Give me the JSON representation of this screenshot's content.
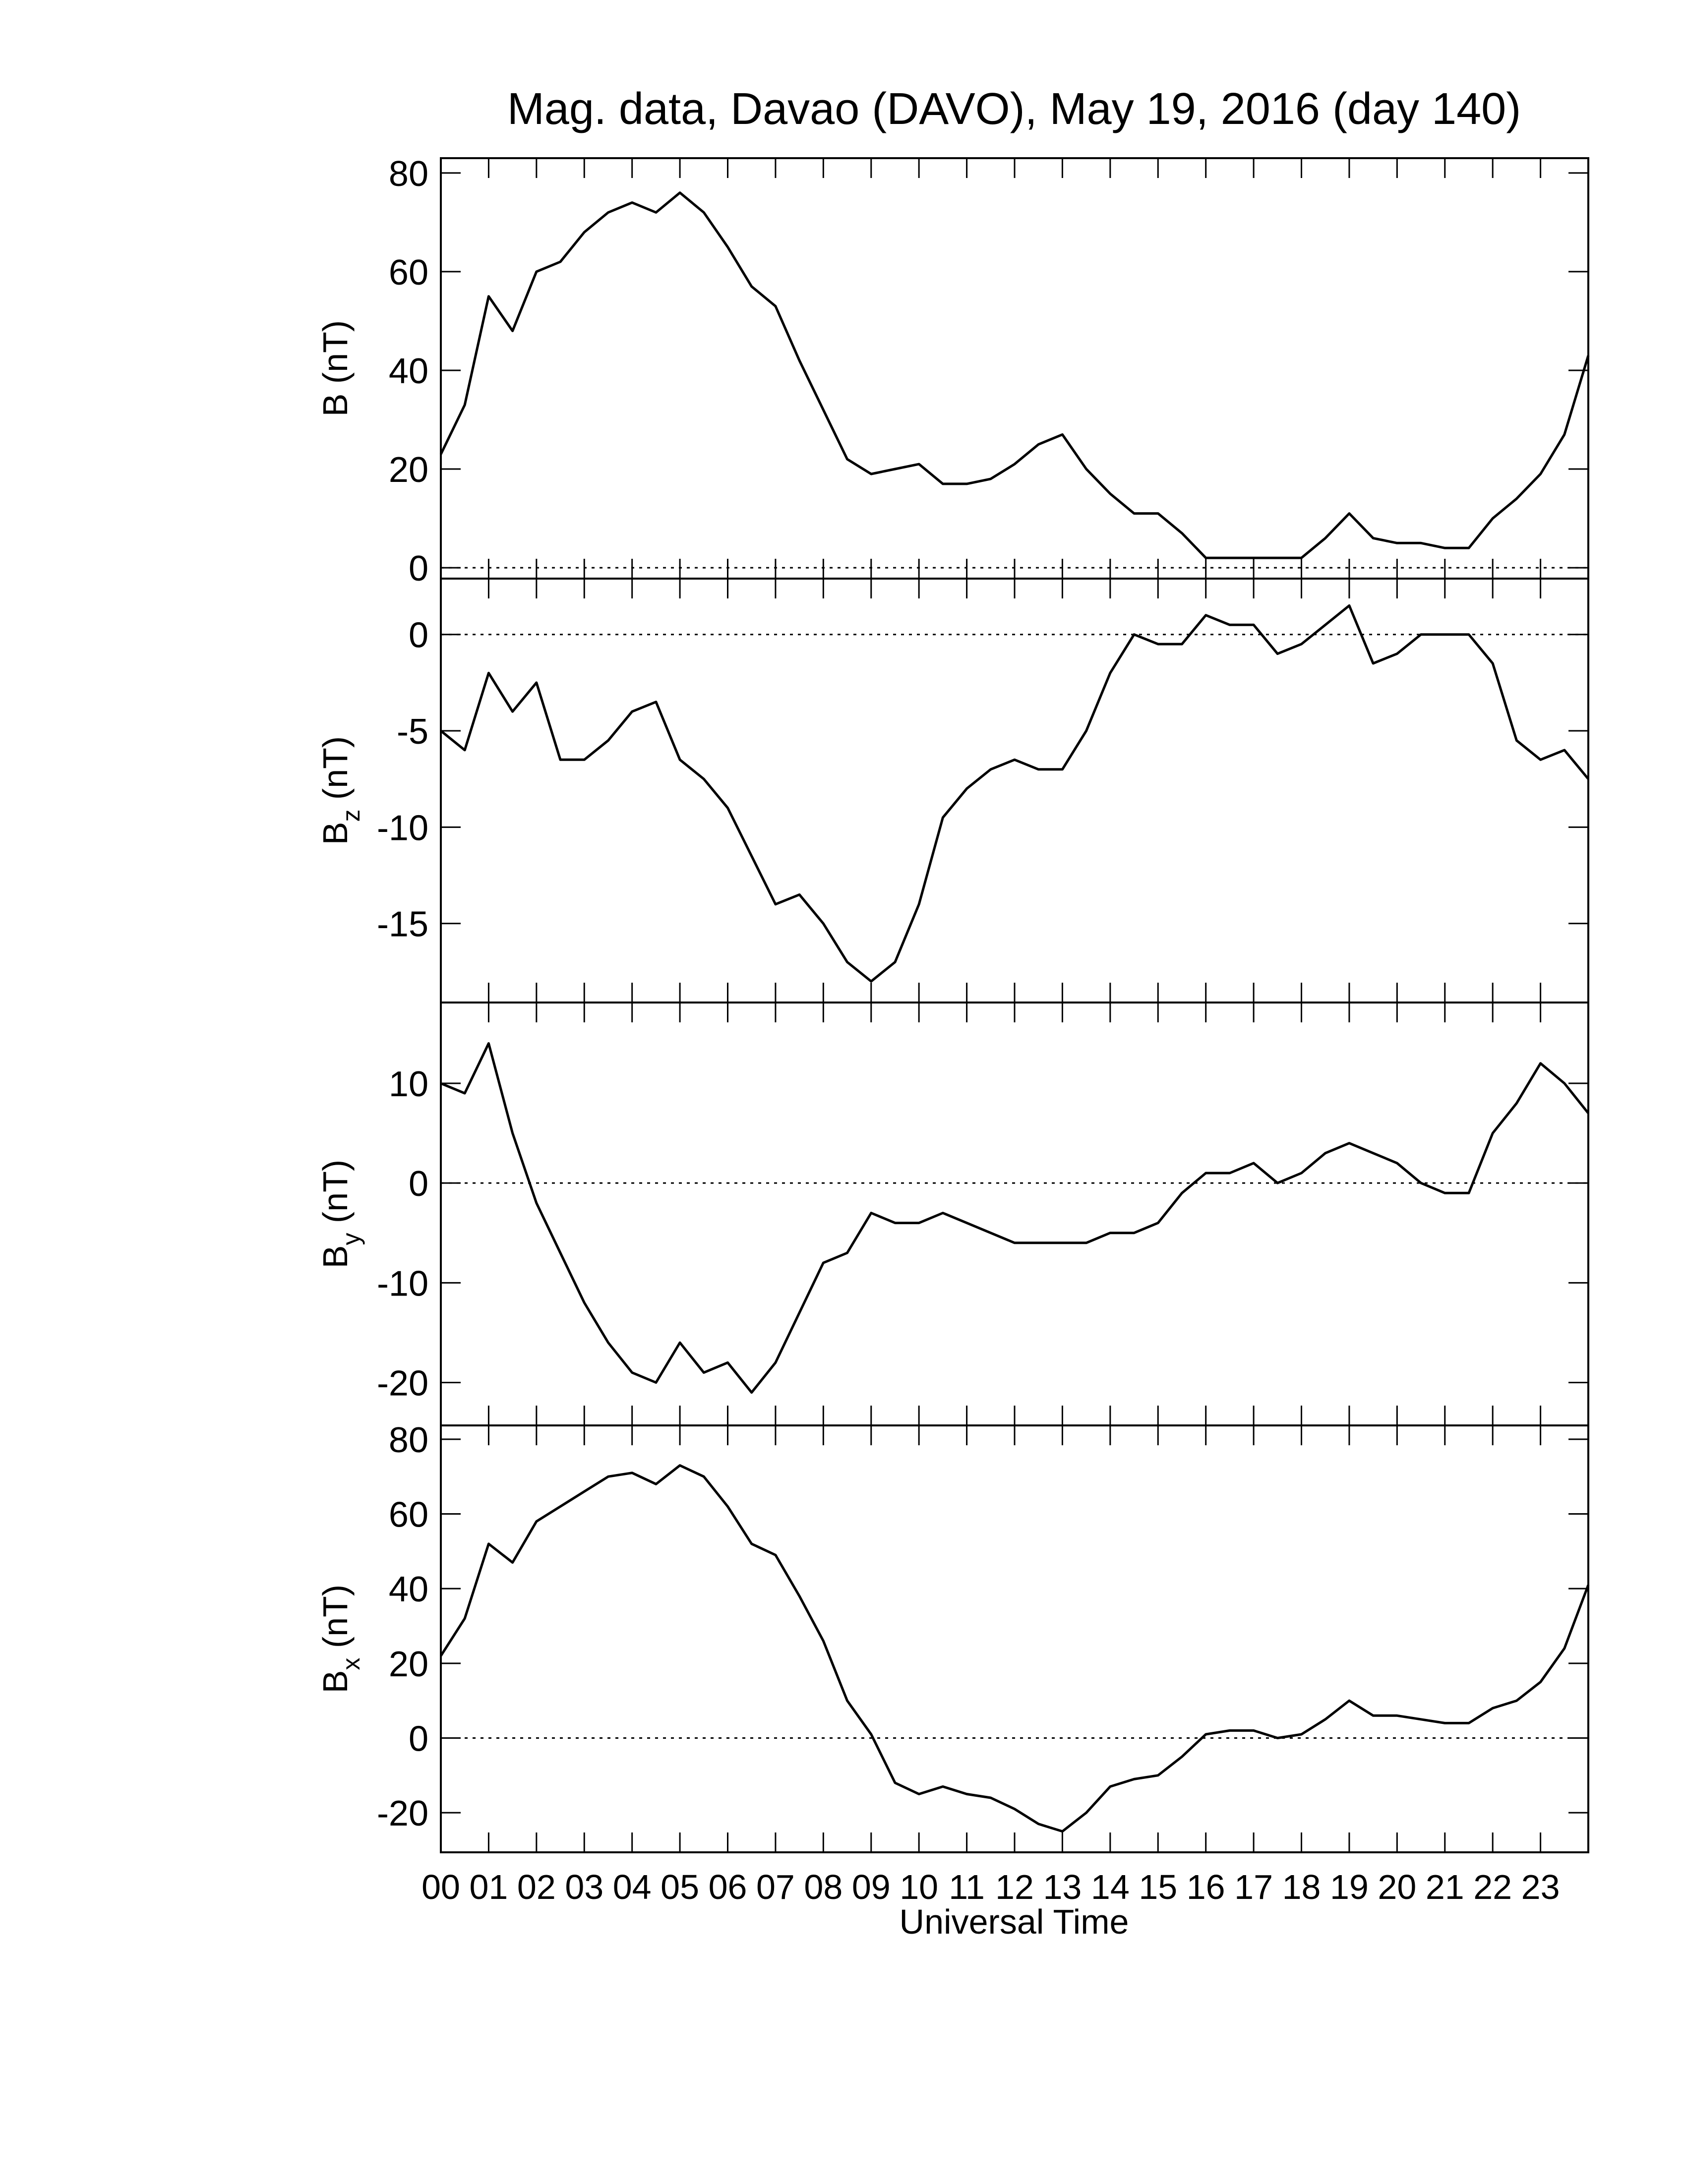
{
  "chart_data": [
    {
      "type": "line",
      "title": "Mag. data, Davao (DAVO), May 19, 2016 (day 140)",
      "ylabel": {
        "symbol": "B",
        "unit": "(nT)"
      },
      "x": [
        0,
        0.5,
        1,
        1.5,
        2,
        2.5,
        3,
        3.5,
        4,
        4.5,
        5,
        5.5,
        6,
        6.5,
        7,
        7.5,
        8,
        8.5,
        9,
        9.5,
        10,
        10.5,
        11,
        11.5,
        12,
        12.5,
        13,
        13.5,
        14,
        14.5,
        15,
        15.5,
        16,
        16.5,
        17,
        17.5,
        18,
        18.5,
        19,
        19.5,
        20,
        20.5,
        21,
        21.5,
        22,
        22.5,
        23,
        23.5,
        24
      ],
      "values": [
        23,
        33,
        55,
        48,
        60,
        62,
        68,
        72,
        74,
        72,
        76,
        72,
        65,
        57,
        53,
        42,
        32,
        22,
        19,
        20,
        21,
        17,
        17,
        18,
        21,
        25,
        27,
        20,
        15,
        11,
        11,
        7,
        2,
        2,
        2,
        2,
        2,
        6,
        11,
        6,
        5,
        5,
        4,
        4,
        10,
        14,
        19,
        27,
        43
      ],
      "color": "#000000",
      "ylim": [
        -2.2,
        83
      ],
      "yticks": [
        0,
        20,
        40,
        60,
        80
      ]
    },
    {
      "type": "line",
      "ylabel": {
        "symbol": "B",
        "subscript": "z",
        "unit": "(nT)"
      },
      "x": [
        0,
        0.5,
        1,
        1.5,
        2,
        2.5,
        3,
        3.5,
        4,
        4.5,
        5,
        5.5,
        6,
        6.5,
        7,
        7.5,
        8,
        8.5,
        9,
        9.5,
        10,
        10.5,
        11,
        11.5,
        12,
        12.5,
        13,
        13.5,
        14,
        14.5,
        15,
        15.5,
        16,
        16.5,
        17,
        17.5,
        18,
        18.5,
        19,
        19.5,
        20,
        20.5,
        21,
        21.5,
        22,
        22.5,
        23,
        23.5,
        24
      ],
      "values": [
        -5,
        -6,
        -2,
        -4,
        -2.5,
        -6.5,
        -6.5,
        -5.5,
        -4,
        -3.5,
        -6.5,
        -7.5,
        -9,
        -11.5,
        -14,
        -13.5,
        -15,
        -17,
        -18,
        -17,
        -14,
        -9.5,
        -8,
        -7,
        -6.5,
        -7,
        -7,
        -5,
        -2,
        0,
        -0.5,
        -0.5,
        1,
        0.5,
        0.5,
        -1,
        -0.5,
        0.5,
        1.5,
        -1.5,
        -1,
        0,
        0,
        0,
        -1.5,
        -5.5,
        -6.5,
        -6,
        -7.5
      ],
      "color": "#000000",
      "ylim": [
        -19.1,
        2.9
      ],
      "yticks": [
        -15,
        -10,
        -5,
        0
      ]
    },
    {
      "type": "line",
      "ylabel": {
        "symbol": "B",
        "subscript": "y",
        "unit": "(nT)"
      },
      "x": [
        0,
        0.5,
        1,
        1.5,
        2,
        2.5,
        3,
        3.5,
        4,
        4.5,
        5,
        5.5,
        6,
        6.5,
        7,
        7.5,
        8,
        8.5,
        9,
        9.5,
        10,
        10.5,
        11,
        11.5,
        12,
        12.5,
        13,
        13.5,
        14,
        14.5,
        15,
        15.5,
        16,
        16.5,
        17,
        17.5,
        18,
        18.5,
        19,
        19.5,
        20,
        20.5,
        21,
        21.5,
        22,
        22.5,
        23,
        23.5,
        24
      ],
      "values": [
        10,
        9,
        14,
        5,
        -2,
        -7,
        -12,
        -16,
        -19,
        -20,
        -16,
        -19,
        -18,
        -21,
        -18,
        -13,
        -8,
        -7,
        -3,
        -4,
        -4,
        -3,
        -4,
        -5,
        -6,
        -6,
        -6,
        -6,
        -5,
        -5,
        -4,
        -1,
        1,
        1,
        2,
        0,
        1,
        3,
        4,
        3,
        2,
        0,
        -1,
        -1,
        5,
        8,
        12,
        10,
        7
      ],
      "color": "#000000",
      "ylim": [
        -24.3,
        18.1
      ],
      "yticks": [
        -20,
        -10,
        0,
        10
      ]
    },
    {
      "type": "line",
      "ylabel": {
        "symbol": "B",
        "subscript": "x",
        "unit": "(nT)"
      },
      "xlabel": "Universal Time",
      "x": [
        0,
        0.5,
        1,
        1.5,
        2,
        2.5,
        3,
        3.5,
        4,
        4.5,
        5,
        5.5,
        6,
        6.5,
        7,
        7.5,
        8,
        8.5,
        9,
        9.5,
        10,
        10.5,
        11,
        11.5,
        12,
        12.5,
        13,
        13.5,
        14,
        14.5,
        15,
        15.5,
        16,
        16.5,
        17,
        17.5,
        18,
        18.5,
        19,
        19.5,
        20,
        20.5,
        21,
        21.5,
        22,
        22.5,
        23,
        23.5,
        24
      ],
      "values": [
        22,
        32,
        52,
        47,
        58,
        62,
        66,
        70,
        71,
        68,
        73,
        70,
        62,
        52,
        49,
        38,
        26,
        10,
        1,
        -12,
        -15,
        -13,
        -15,
        -16,
        -19,
        -23,
        -25,
        -20,
        -13,
        -11,
        -10,
        -5,
        1,
        2,
        2,
        0,
        1,
        5,
        10,
        6,
        6,
        5,
        4,
        4,
        8,
        10,
        15,
        24,
        41
      ],
      "color": "#000000",
      "ylim": [
        -30.6,
        83.7
      ],
      "yticks": [
        -20,
        0,
        20,
        40,
        60,
        80
      ],
      "xlim": [
        0,
        24
      ],
      "xticks": [
        {
          "value": 0,
          "label": "00"
        },
        {
          "value": 1,
          "label": "01"
        },
        {
          "value": 2,
          "label": "02"
        },
        {
          "value": 3,
          "label": "03"
        },
        {
          "value": 4,
          "label": "04"
        },
        {
          "value": 5,
          "label": "05"
        },
        {
          "value": 6,
          "label": "06"
        },
        {
          "value": 7,
          "label": "07"
        },
        {
          "value": 8,
          "label": "08"
        },
        {
          "value": 9,
          "label": "09"
        },
        {
          "value": 10,
          "label": "10"
        },
        {
          "value": 11,
          "label": "11"
        },
        {
          "value": 12,
          "label": "12"
        },
        {
          "value": 13,
          "label": "13"
        },
        {
          "value": 14,
          "label": "14"
        },
        {
          "value": 15,
          "label": "15"
        },
        {
          "value": 16,
          "label": "16"
        },
        {
          "value": 17,
          "label": "17"
        },
        {
          "value": 18,
          "label": "18"
        },
        {
          "value": 19,
          "label": "19"
        },
        {
          "value": 20,
          "label": "20"
        },
        {
          "value": 21,
          "label": "21"
        },
        {
          "value": 22,
          "label": "22"
        },
        {
          "value": 23,
          "label": "23"
        }
      ]
    }
  ]
}
